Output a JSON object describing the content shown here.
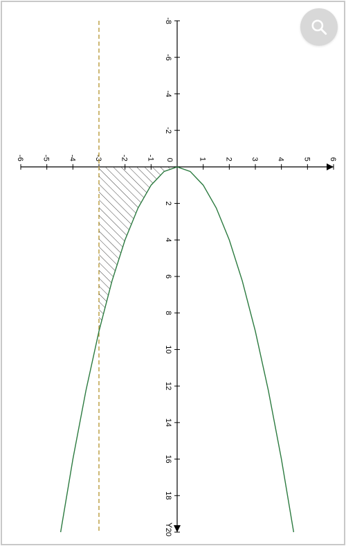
{
  "chart": {
    "type": "line",
    "width_rotated": 788,
    "height_rotated": 500,
    "background_color": "#ffffff",
    "border_color": "#c8c8c8",
    "axis": {
      "color": "#000000",
      "width": 1.2,
      "x": {
        "label": "Y",
        "min": -8,
        "max": 20,
        "tick_step": 2,
        "ticks": [
          -8,
          -6,
          -4,
          -2,
          0,
          2,
          4,
          6,
          8,
          10,
          12,
          14,
          16,
          18,
          20
        ]
      },
      "y": {
        "label": "",
        "min": -6,
        "max": 6,
        "tick_step": 1,
        "ticks": [
          -6,
          -5,
          -4,
          -3,
          -2,
          -1,
          0,
          1,
          2,
          3,
          4,
          5,
          6
        ]
      },
      "tick_font_size": 11,
      "tick_font_color": "#000000"
    },
    "reference_line": {
      "y_value": -3,
      "color": "#b89a3a",
      "dash": "6,4",
      "width": 1.4
    },
    "curve": {
      "color": "#2b7a3f",
      "width": 1.4,
      "equation": "x = y^2",
      "upper_points": [
        [
          0,
          0
        ],
        [
          0.25,
          0.5
        ],
        [
          1,
          1
        ],
        [
          2.25,
          1.5
        ],
        [
          4,
          2
        ],
        [
          6.25,
          2.5
        ],
        [
          9,
          3
        ],
        [
          12.25,
          3.5
        ],
        [
          16,
          4
        ],
        [
          20,
          4.47
        ]
      ],
      "lower_points": [
        [
          0,
          0
        ],
        [
          0.25,
          -0.5
        ],
        [
          1,
          -1
        ],
        [
          2.25,
          -1.5
        ],
        [
          4,
          -2
        ],
        [
          6.25,
          -2.5
        ],
        [
          9,
          -3
        ],
        [
          12.25,
          -3.5
        ],
        [
          16,
          -4
        ],
        [
          20,
          -4.47
        ]
      ]
    },
    "shaded_region": {
      "description": "Region bounded by x=0, y=-3, and lower branch curve",
      "hatch": {
        "type": "diagonal",
        "angle": 45,
        "spacing": 8,
        "stroke": "#2a2a2a",
        "stroke_width": 0.9
      },
      "vertices_data": [
        [
          0,
          0
        ],
        [
          0,
          -3
        ],
        [
          9,
          -3
        ]
      ],
      "fill": "none"
    }
  },
  "zoom_button": {
    "icon": "search-icon",
    "bg": "#d8d8d8",
    "icon_color": "#ffffff"
  }
}
